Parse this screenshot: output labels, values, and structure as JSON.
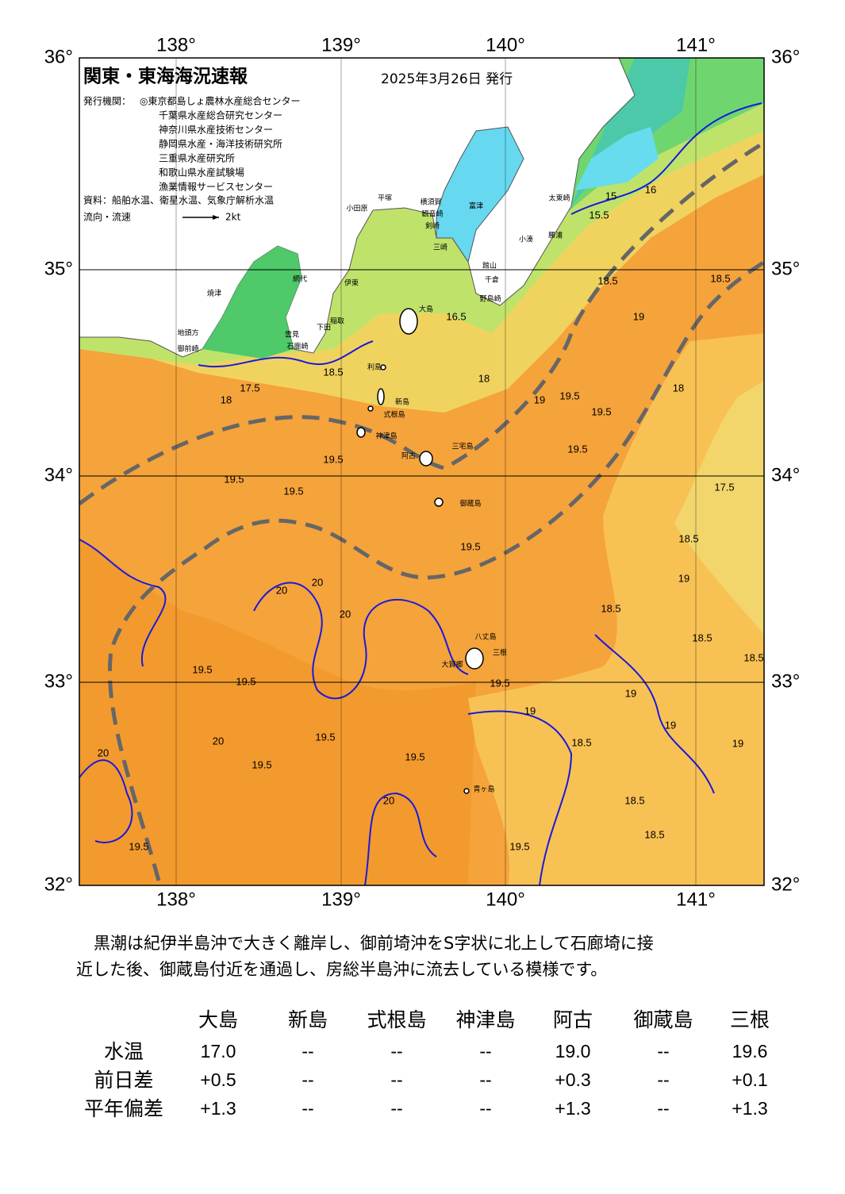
{
  "header": {
    "title": "関東・東海海況速報",
    "date": "2025年3月26日 発行",
    "issuer_label": "発行機関：",
    "issuers": [
      "◎東京都島しょ農林水産総合センター",
      "千葉県水産総合研究センター",
      "神奈川県水産技術センター",
      "静岡県水産・海洋技術研究所",
      "三重県水産研究所",
      "和歌山県水産試験場",
      "漁業情報サービスセンター"
    ],
    "source": "資料：船舶水温、衛星水温、気象庁解析水温",
    "flow_label": "流向・流速",
    "flow_scale": "2kt"
  },
  "map": {
    "lon_ticks": [
      "138°",
      "139°",
      "140°",
      "141°"
    ],
    "lat_ticks": [
      "36°",
      "35°",
      "34°",
      "33°",
      "32°"
    ],
    "contour_labels": [
      "15",
      "15.5",
      "16",
      "16.5",
      "17.5",
      "18",
      "18.5",
      "18",
      "19",
      "19.5",
      "19.5",
      "19.5",
      "19.5",
      "19.5",
      "19.5",
      "19.5",
      "18.5",
      "18.5",
      "19",
      "18",
      "17.5",
      "18.5",
      "19",
      "18.5",
      "18.5",
      "19",
      "20",
      "20",
      "20",
      "19.5",
      "19.5",
      "19.5",
      "19.5",
      "19.5",
      "20",
      "20",
      "20",
      "18.5",
      "18.5",
      "18.5",
      "19.5",
      "19.5",
      "19",
      "19",
      "19.5",
      "18.5",
      "19"
    ],
    "place_names": [
      "太東崎",
      "勝浦",
      "小湊",
      "館山",
      "千倉",
      "野島崎",
      "富津",
      "横須賀",
      "観音崎",
      "剣崎",
      "三崎",
      "平塚",
      "小田原",
      "網代",
      "伊東",
      "稲取",
      "下田",
      "雲見",
      "石廊崎",
      "焼津",
      "地頭方",
      "御前崎",
      "大島",
      "利島",
      "新島",
      "式根島",
      "神津島",
      "三宅島",
      "阿古",
      "御蔵島",
      "八丈島",
      "三根",
      "大賀郷",
      "青ヶ島"
    ]
  },
  "summary": [
    "黒潮は紀伊半島沖で大きく離岸し、御前埼沖をS字状に北上して石廊埼に接",
    "近した後、御蔵島付近を通過し、房総半島沖に流去している模様です。"
  ],
  "table": {
    "columns": [
      "大島",
      "新島",
      "式根島",
      "神津島",
      "阿古",
      "御蔵島",
      "三根"
    ],
    "rows": [
      {
        "label": "水温",
        "cells": [
          "17.0",
          "--",
          "--",
          "--",
          "19.0",
          "--",
          "19.6"
        ]
      },
      {
        "label": "前日差",
        "cells": [
          "+0.5",
          "--",
          "--",
          "--",
          "+0.3",
          "--",
          "+0.1"
        ]
      },
      {
        "label": "平年偏差",
        "cells": [
          "+1.3",
          "--",
          "--",
          "--",
          "+1.3",
          "--",
          "+1.3"
        ]
      }
    ]
  }
}
